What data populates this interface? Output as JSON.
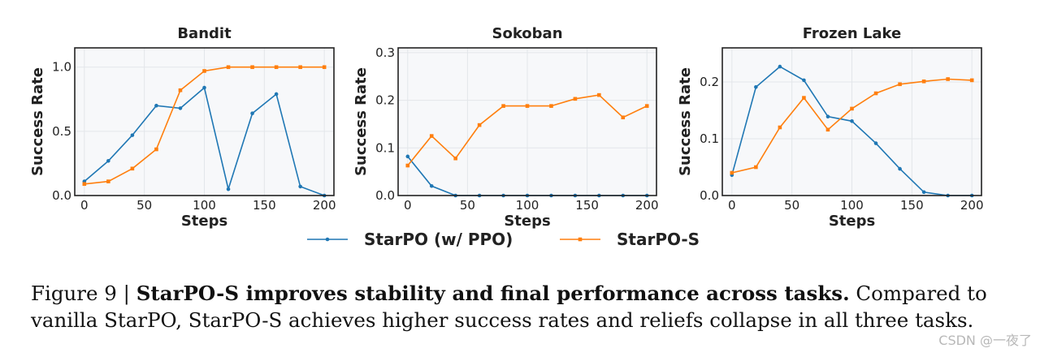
{
  "chart_data": [
    {
      "type": "line",
      "title": "Bandit",
      "xlabel": "Steps",
      "ylabel": "Success Rate",
      "xlim": [
        -8,
        208
      ],
      "ylim": [
        0,
        1.15
      ],
      "xticks": [
        "0",
        "50",
        "100",
        "150",
        "200"
      ],
      "xtick_values": [
        0,
        50,
        100,
        150,
        200
      ],
      "yticks": [
        "0.0",
        "0.5",
        "1.0"
      ],
      "ytick_values": [
        0,
        0.5,
        1.0
      ],
      "grid": true,
      "x": [
        0,
        20,
        40,
        60,
        80,
        100,
        120,
        140,
        160,
        180,
        200
      ],
      "series": [
        {
          "name": "StarPO (w/ PPO)",
          "values": [
            0.11,
            0.27,
            0.47,
            0.7,
            0.68,
            0.84,
            0.05,
            0.64,
            0.79,
            0.07,
            0.0
          ]
        },
        {
          "name": "StarPO-S",
          "values": [
            0.09,
            0.11,
            0.21,
            0.36,
            0.82,
            0.97,
            1.0,
            1.0,
            1.0,
            1.0,
            1.0
          ]
        }
      ]
    },
    {
      "type": "line",
      "title": "Sokoban",
      "xlabel": "Steps",
      "ylabel": "Success Rate",
      "xlim": [
        -8,
        208
      ],
      "ylim": [
        0,
        0.31
      ],
      "xticks": [
        "0",
        "50",
        "100",
        "150",
        "200"
      ],
      "xtick_values": [
        0,
        50,
        100,
        150,
        200
      ],
      "yticks": [
        "0.0",
        "0.1",
        "0.2",
        "0.3"
      ],
      "ytick_values": [
        0,
        0.1,
        0.2,
        0.3
      ],
      "grid": true,
      "x": [
        0,
        20,
        40,
        60,
        80,
        100,
        120,
        140,
        160,
        180,
        200
      ],
      "series": [
        {
          "name": "StarPO (w/ PPO)",
          "values": [
            0.082,
            0.02,
            0.0,
            0.0,
            0.0,
            0.0,
            0.0,
            0.0,
            0.0,
            0.0,
            0.0
          ]
        },
        {
          "name": "StarPO-S",
          "values": [
            0.063,
            0.125,
            0.078,
            0.148,
            0.188,
            0.188,
            0.188,
            0.203,
            0.211,
            0.164,
            0.188
          ]
        }
      ]
    },
    {
      "type": "line",
      "title": "Frozen Lake",
      "xlabel": "Steps",
      "ylabel": "Success Rate",
      "xlim": [
        -8,
        208
      ],
      "ylim": [
        0,
        0.26
      ],
      "xticks": [
        "0",
        "50",
        "100",
        "150",
        "200"
      ],
      "xtick_values": [
        0,
        50,
        100,
        150,
        200
      ],
      "yticks": [
        "0.0",
        "0.1",
        "0.2"
      ],
      "ytick_values": [
        0,
        0.1,
        0.2
      ],
      "grid": true,
      "x": [
        0,
        20,
        40,
        60,
        80,
        100,
        120,
        140,
        160,
        180,
        200
      ],
      "series": [
        {
          "name": "StarPO (w/ PPO)",
          "values": [
            0.036,
            0.191,
            0.227,
            0.203,
            0.139,
            0.131,
            0.092,
            0.047,
            0.006,
            0.0,
            0.0
          ]
        },
        {
          "name": "StarPO-S",
          "values": [
            0.04,
            0.05,
            0.12,
            0.172,
            0.116,
            0.153,
            0.18,
            0.196,
            0.201,
            0.205,
            0.203
          ]
        }
      ]
    }
  ],
  "legend": {
    "placement": "bottom-center",
    "entries": [
      {
        "name": "StarPO (w/ PPO)",
        "color": "#1f77b4"
      },
      {
        "name": "StarPO-S",
        "color": "#ff7f0e"
      }
    ]
  },
  "colors": {
    "series": [
      "#1f77b4",
      "#ff7f0e"
    ],
    "plot_bg": "#f7f8fa",
    "grid": "#e3e6ea"
  },
  "caption": {
    "prefix": "Figure 9 | ",
    "bold": "StarPO-S improves stability and final performance across tasks.",
    "rest": " Compared to vanilla StarPO, StarPO-S achieves higher success rates and reliefs collapse in all three tasks."
  },
  "watermark": "CSDN @一夜了"
}
